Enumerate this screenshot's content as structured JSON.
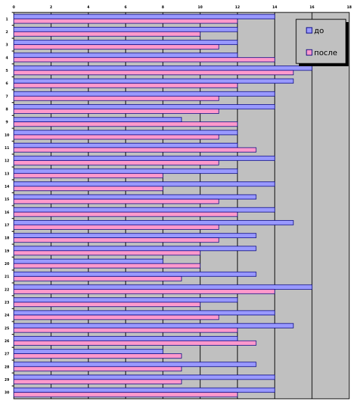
{
  "chart_data": {
    "type": "bar",
    "orientation": "horizontal",
    "categories": [
      "1",
      "2",
      "3",
      "4",
      "5",
      "6",
      "7",
      "8",
      "9",
      "10",
      "11",
      "12",
      "13",
      "14",
      "15",
      "16",
      "17",
      "18",
      "19",
      "20",
      "21",
      "22",
      "23",
      "24",
      "25",
      "26",
      "27",
      "28",
      "29",
      "30"
    ],
    "series": [
      {
        "name": "до",
        "color": "#9999ff",
        "values": [
          14,
          12,
          12,
          12,
          16,
          15,
          14,
          14,
          9,
          12,
          12,
          14,
          12,
          14,
          13,
          14,
          15,
          13,
          13,
          8,
          13,
          16,
          12,
          14,
          15,
          12,
          8,
          13,
          14,
          14
        ]
      },
      {
        "name": "после",
        "color": "#ff99cc",
        "values": [
          12,
          10,
          11,
          14,
          15,
          12,
          11,
          11,
          12,
          11,
          13,
          11,
          8,
          8,
          11,
          12,
          11,
          11,
          10,
          10,
          9,
          14,
          10,
          11,
          12,
          13,
          9,
          9,
          9,
          12
        ]
      }
    ],
    "xlim": [
      0,
      18
    ],
    "x_ticks": [
      "0",
      "2",
      "4",
      "6",
      "8",
      "10",
      "12",
      "14",
      "16",
      "18"
    ],
    "grid": "vertical",
    "legend_position": "top-right",
    "plot_background": "#c0c0c0",
    "bar_outline": "#000080",
    "grid_color": "#000000"
  }
}
